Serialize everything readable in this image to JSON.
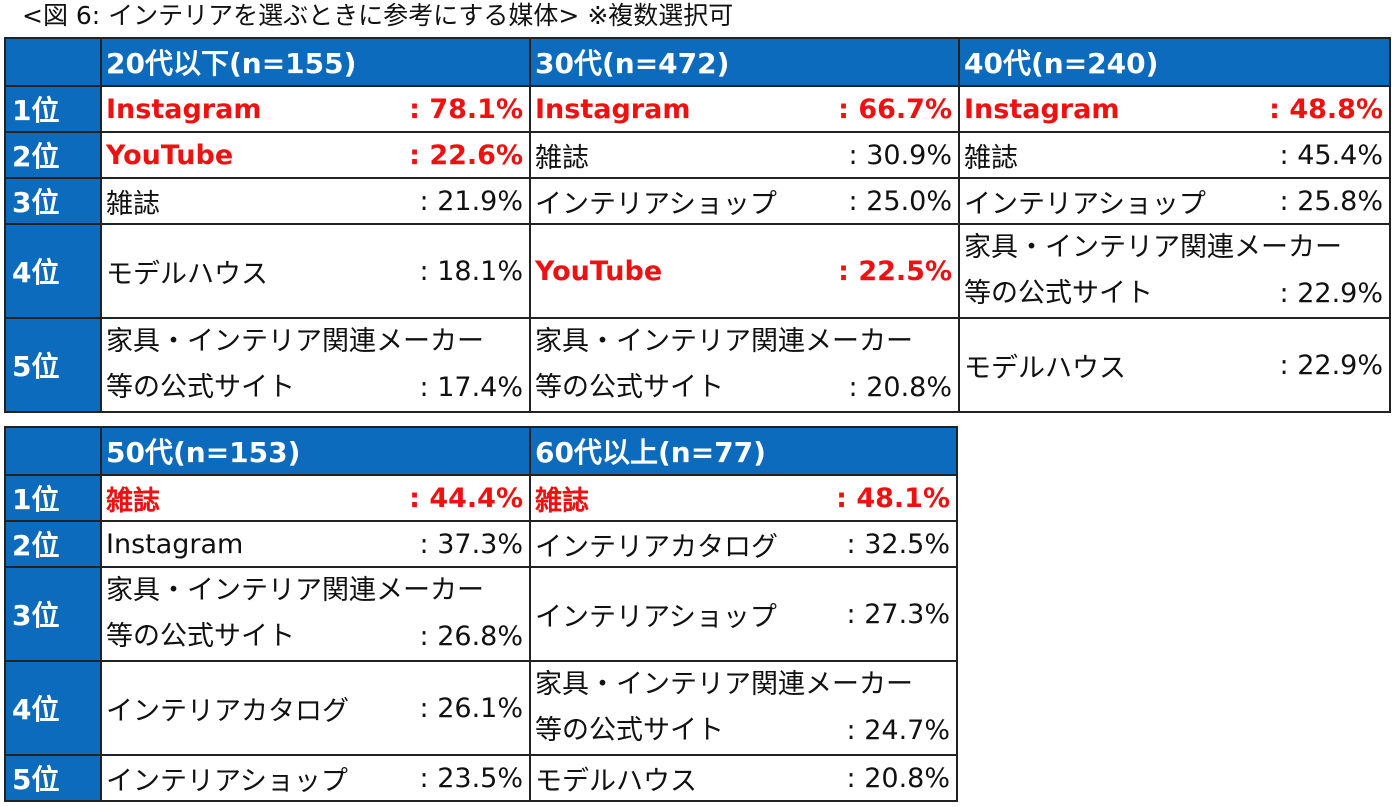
{
  "caption": "<図 6: インテリアを選ぶときに参考にする媒体> ※複数選択可",
  "table1": {
    "headers": [
      "",
      "20代以下(n=155)",
      "30代(n=472)",
      "40代(n=240)"
    ],
    "ranks": [
      "1位",
      "2位",
      "3位",
      "4位",
      "5位"
    ],
    "cells": [
      [
        {
          "label": "Instagram",
          "value": ": 78.1%",
          "highlight": true
        },
        {
          "label": "Instagram",
          "value": ": 66.7%",
          "highlight": true
        },
        {
          "label": "Instagram",
          "value": ": 48.8%",
          "highlight": true
        }
      ],
      [
        {
          "label": "YouTube",
          "value": ": 22.6%",
          "highlight": true
        },
        {
          "label": "雑誌",
          "value": ": 30.9%",
          "highlight": false
        },
        {
          "label": "雑誌",
          "value": ": 45.4%",
          "highlight": false
        }
      ],
      [
        {
          "label": "雑誌",
          "value": ": 21.9%",
          "highlight": false
        },
        {
          "label": "インテリアショップ",
          "value": ": 25.0%",
          "highlight": false
        },
        {
          "label": "インテリアショップ",
          "value": ": 25.8%",
          "highlight": false
        }
      ],
      [
        {
          "label": "モデルハウス",
          "value": ": 18.1%",
          "highlight": false
        },
        {
          "label": "YouTube",
          "value": ": 22.5%",
          "highlight": true
        },
        {
          "label_line1": "家具・インテリア関連メーカー",
          "label_line2": "等の公式サイト",
          "value": ": 22.9%",
          "highlight": false
        }
      ],
      [
        {
          "label_line1": "家具・インテリア関連メーカー",
          "label_line2": "等の公式サイト",
          "value": ": 17.4%",
          "highlight": false
        },
        {
          "label_line1": "家具・インテリア関連メーカー",
          "label_line2": "等の公式サイト",
          "value": ": 20.8%",
          "highlight": false
        },
        {
          "label": "モデルハウス",
          "value": ": 22.9%",
          "highlight": false
        }
      ]
    ]
  },
  "table2": {
    "headers": [
      "",
      "50代(n=153)",
      "60代以上(n=77)"
    ],
    "ranks": [
      "1位",
      "2位",
      "3位",
      "4位",
      "5位"
    ],
    "cells": [
      [
        {
          "label": "雑誌",
          "value": ": 44.4%",
          "highlight": true
        },
        {
          "label": "雑誌",
          "value": ": 48.1%",
          "highlight": true
        }
      ],
      [
        {
          "label": "Instagram",
          "value": ": 37.3%",
          "highlight": false
        },
        {
          "label": "インテリアカタログ",
          "value": ": 32.5%",
          "highlight": false
        }
      ],
      [
        {
          "label_line1": "家具・インテリア関連メーカー",
          "label_line2": "等の公式サイト",
          "value": ": 26.8%",
          "highlight": false
        },
        {
          "label": "インテリアショップ",
          "value": ": 27.3%",
          "highlight": false
        }
      ],
      [
        {
          "label": "インテリアカタログ",
          "value": ": 26.1%",
          "highlight": false
        },
        {
          "label_line1": "家具・インテリア関連メーカー",
          "label_line2": "等の公式サイト",
          "value": ": 24.7%",
          "highlight": false
        }
      ],
      [
        {
          "label": "インテリアショップ",
          "value": ": 23.5%",
          "highlight": false
        },
        {
          "label": "モデルハウス",
          "value": ": 20.8%",
          "highlight": false
        }
      ]
    ]
  },
  "colors": {
    "header_bg": "#0d6bbd",
    "header_text": "#ffffff",
    "highlight_text": "#ee1111",
    "border": "#222222"
  }
}
